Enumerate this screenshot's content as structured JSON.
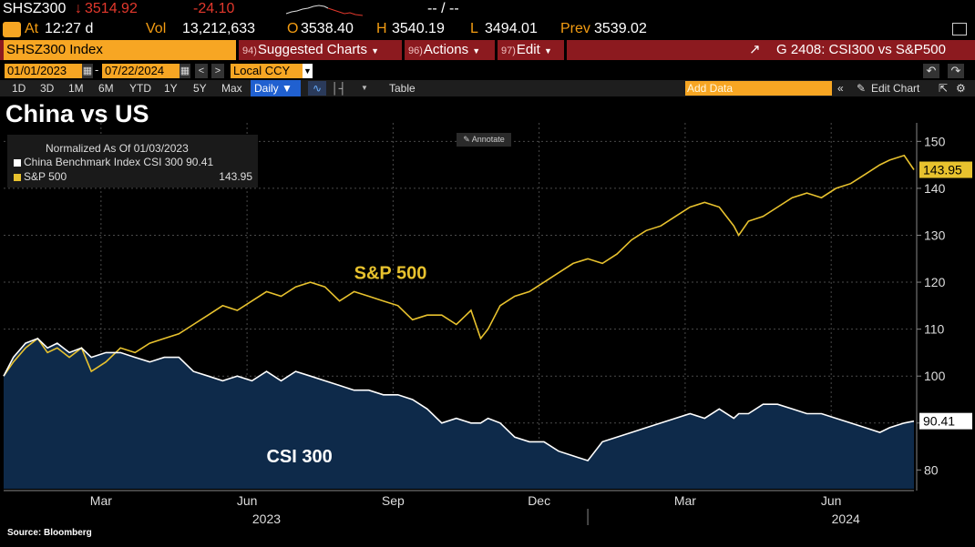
{
  "quote": {
    "ticker": "SHSZ300",
    "last": "3514.92",
    "change": "-24.10",
    "spark_a": "-- / --",
    "at_label": "At",
    "time": "12:27 d",
    "vol_label": "Vol",
    "volume": "13,212,633",
    "open_label": "O",
    "open": "3538.40",
    "high_label": "H",
    "high": "3540.19",
    "low_label": "L",
    "low": "3494.01",
    "prev_label": "Prev",
    "prev": "3539.02"
  },
  "menubar": {
    "security": "SHSZ300 Index",
    "suggested_num": "94)",
    "suggested": "Suggested Charts",
    "actions_num": "96)",
    "actions": "Actions",
    "edit_num": "97)",
    "edit": "Edit",
    "chart_title": "G 2408: CSI300 vs S&P500"
  },
  "range": {
    "start": "01/01/2023",
    "end": "07/22/2024",
    "currency": "Local CCY"
  },
  "toolbar": {
    "periods": [
      "1D",
      "3D",
      "1M",
      "6M",
      "YTD",
      "1Y",
      "5Y",
      "Max"
    ],
    "frequency": "Daily",
    "table": "Table",
    "add_data": "Add Data",
    "edit_chart": "Edit Chart"
  },
  "title": "China vs US",
  "annotate": "Annotate",
  "legend": {
    "header": "Normalized As Of 01/03/2023",
    "s1_name": "China Benchmark Index CSI 300",
    "s1_value": "90.41",
    "s2_name": "S&P 500",
    "s2_value": "143.95"
  },
  "source": "Source: Bloomberg",
  "colors": {
    "csi": "#ffffff",
    "csi_fill": "#0e2a4a",
    "spx": "#e8c22e",
    "grid": "#4a4a4a"
  },
  "chart_data": {
    "type": "line",
    "title": "China vs US",
    "subtitle": "Normalized As Of 01/03/2023",
    "ylim": [
      76,
      152
    ],
    "yticks": [
      80,
      90,
      100,
      110,
      120,
      130,
      140,
      150
    ],
    "x_months": [
      "Mar",
      "Jun",
      "Sep",
      "Dec",
      "Mar",
      "Jun"
    ],
    "x_month_pos": [
      2,
      5,
      8,
      11,
      14,
      17
    ],
    "x_years": [
      "2023",
      "2024"
    ],
    "x_year_pos": [
      5.4,
      17.3
    ],
    "x_year_divider": 12,
    "x_range": [
      0,
      18.7
    ],
    "grid": true,
    "series": [
      {
        "name": "S&P 500",
        "label": "S&P 500",
        "last_value": "143.95",
        "x": [
          0,
          0.2,
          0.45,
          0.7,
          0.9,
          1.1,
          1.35,
          1.6,
          1.8,
          2.1,
          2.4,
          2.7,
          3.0,
          3.3,
          3.6,
          3.9,
          4.2,
          4.5,
          4.8,
          5.1,
          5.4,
          5.7,
          6.0,
          6.3,
          6.6,
          6.9,
          7.2,
          7.5,
          7.8,
          8.1,
          8.4,
          8.7,
          9.0,
          9.3,
          9.6,
          9.8,
          9.95,
          10.2,
          10.5,
          10.8,
          11.1,
          11.4,
          11.7,
          12.0,
          12.3,
          12.6,
          12.9,
          13.2,
          13.5,
          13.8,
          14.1,
          14.4,
          14.7,
          15.0,
          15.1,
          15.3,
          15.6,
          15.9,
          16.2,
          16.5,
          16.8,
          17.1,
          17.4,
          17.7,
          18.0,
          18.2,
          18.5,
          18.7
        ],
        "y": [
          100,
          103,
          106,
          108,
          105,
          106,
          104,
          106,
          101,
          103,
          106,
          105,
          107,
          108,
          109,
          111,
          113,
          115,
          114,
          116,
          118,
          117,
          119,
          120,
          119,
          116,
          118,
          117,
          116,
          115,
          112,
          113,
          113,
          111,
          114,
          108,
          110,
          115,
          117,
          118,
          120,
          122,
          124,
          125,
          124,
          126,
          129,
          131,
          132,
          134,
          136,
          137,
          136,
          132,
          130,
          133,
          134,
          136,
          138,
          139,
          138,
          140,
          141,
          143,
          145,
          146,
          147,
          143.95
        ]
      },
      {
        "name": "China Benchmark Index CSI 300",
        "label": "CSI 300",
        "last_value": "90.41",
        "x": [
          0,
          0.2,
          0.45,
          0.7,
          0.9,
          1.1,
          1.35,
          1.6,
          1.8,
          2.1,
          2.4,
          2.7,
          3.0,
          3.3,
          3.6,
          3.9,
          4.2,
          4.5,
          4.8,
          5.1,
          5.4,
          5.7,
          6.0,
          6.3,
          6.6,
          6.9,
          7.2,
          7.5,
          7.8,
          8.1,
          8.4,
          8.7,
          9.0,
          9.3,
          9.6,
          9.8,
          9.95,
          10.2,
          10.5,
          10.8,
          11.1,
          11.4,
          11.7,
          12.0,
          12.3,
          12.6,
          12.9,
          13.2,
          13.5,
          13.8,
          14.1,
          14.4,
          14.7,
          15.0,
          15.1,
          15.3,
          15.6,
          15.9,
          16.2,
          16.5,
          16.8,
          17.1,
          17.4,
          17.7,
          18.0,
          18.2,
          18.5,
          18.7
        ],
        "y": [
          100,
          104,
          107,
          108,
          106,
          107,
          105,
          106,
          104,
          105,
          105,
          104,
          103,
          104,
          104,
          101,
          100,
          99,
          100,
          99,
          101,
          99,
          101,
          100,
          99,
          98,
          97,
          97,
          96,
          96,
          95,
          93,
          90,
          91,
          90,
          90,
          91,
          90,
          87,
          86,
          86,
          84,
          83,
          82,
          86,
          87,
          88,
          89,
          90,
          91,
          92,
          91,
          93,
          91,
          92,
          92,
          94,
          94,
          93,
          92,
          92,
          91,
          90,
          89,
          88,
          89,
          90,
          90.41
        ]
      }
    ]
  }
}
